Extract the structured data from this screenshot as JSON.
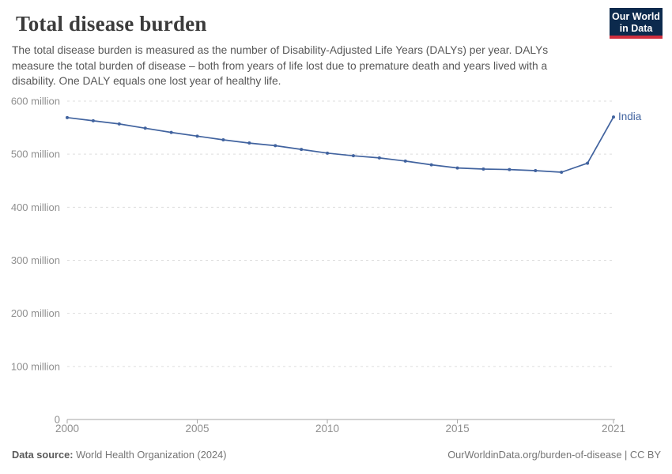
{
  "header": {
    "title": "Total disease burden",
    "subtitle": "The total disease burden is measured as the number of Disability-Adjusted Life Years (DALYs) per year. DALYs measure the total burden of disease – both from years of life lost due to premature death and years lived with a disability. One DALY equals one lost year of healthy life.",
    "logo": {
      "line1": "Our World",
      "line2": "in Data"
    }
  },
  "chart_data": {
    "type": "line",
    "title": "Total disease burden",
    "unit": "DALYs (Disability-Adjusted Life Years) per year",
    "x": [
      2000,
      2001,
      2002,
      2003,
      2004,
      2005,
      2006,
      2007,
      2008,
      2009,
      2010,
      2011,
      2012,
      2013,
      2014,
      2015,
      2016,
      2017,
      2018,
      2019,
      2020,
      2021
    ],
    "series": [
      {
        "name": "India",
        "values_millions": [
          569,
          563,
          557,
          549,
          541,
          534,
          527,
          521,
          516,
          509,
          502,
          497,
          493,
          487,
          480,
          474,
          472,
          471,
          469,
          466,
          483,
          570
        ]
      }
    ],
    "xlim": [
      2000,
      2021
    ],
    "ylim_millions": [
      0,
      600
    ],
    "xtick_values": [
      2000,
      2005,
      2010,
      2015,
      2021
    ],
    "xtick_labels": [
      "2000",
      "2005",
      "2010",
      "2015",
      "2021"
    ],
    "ytick_values_millions": [
      0,
      100,
      200,
      300,
      400,
      500,
      600
    ],
    "ytick_labels": [
      "0",
      "100 million",
      "200 million",
      "300 million",
      "400 million",
      "500 million",
      "600 million"
    ],
    "grid": "horizontal-dashed",
    "legend_position": "end-of-line label"
  },
  "footer": {
    "source_label": "Data source:",
    "source_value": "World Health Organization (2024)",
    "citation": "OurWorldinData.org/burden-of-disease | CC BY"
  },
  "colors": {
    "line": "#41639f",
    "grid": "#dddddd",
    "axis": "#a5a5a5",
    "tick_label": "#8f8f8f",
    "title": "#3b3b3b",
    "logo_bg": "#0c2a4d",
    "logo_stripe": "#d02e3d"
  }
}
